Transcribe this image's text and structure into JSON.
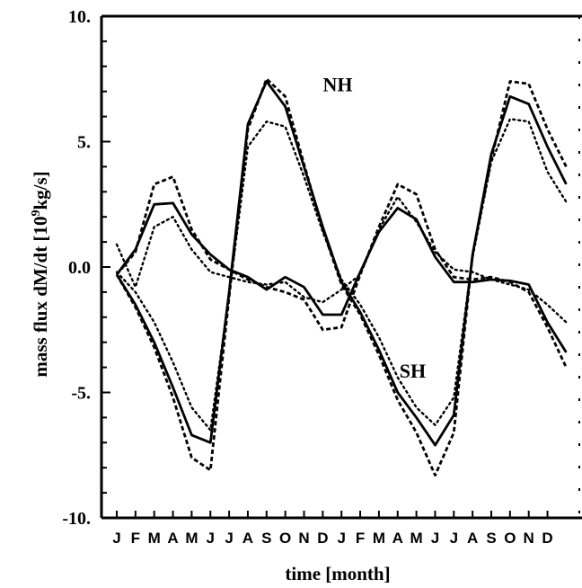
{
  "chart_data": {
    "type": "line",
    "title": "",
    "xlabel": "time [month]",
    "ylabel_parts": {
      "before": "mass flux dM/dt [10",
      "sup": "9",
      "after": "kg/s]"
    },
    "ylim": [
      -10,
      10
    ],
    "y_ticks": [
      10,
      5,
      0,
      -5,
      -10
    ],
    "y_tick_labels": [
      "10.",
      "5.",
      "0.0",
      "-5.",
      "-10."
    ],
    "x_ticks": [
      "J",
      "F",
      "M",
      "A",
      "M",
      "J",
      "J",
      "A",
      "S",
      "O",
      "N",
      "D",
      "J",
      "F",
      "M",
      "A",
      "M",
      "J",
      "J",
      "A",
      "S",
      "O",
      "N",
      "D"
    ],
    "annotations": [
      {
        "text": "NH",
        "x": 11.8,
        "y": 7.0
      },
      {
        "text": "SH",
        "x": 15.8,
        "y": -4.4
      }
    ],
    "series": [
      {
        "style": "solid",
        "values": [
          -0.3,
          0.7,
          2.5,
          2.55,
          1.3,
          0.5,
          -0.1,
          -0.4,
          -0.9,
          -0.4,
          -0.8,
          -1.9,
          -1.9,
          -0.2,
          1.4,
          2.35,
          1.9,
          0.4,
          -0.6,
          -0.6,
          -0.5,
          -0.55,
          -0.7,
          -2.2,
          -3.4
        ]
      },
      {
        "style": "dashed",
        "values": [
          -0.3,
          0.6,
          3.3,
          3.6,
          1.5,
          0.3,
          -0.1,
          -0.5,
          -0.8,
          -1.0,
          -1.3,
          -2.5,
          -2.4,
          -0.3,
          1.6,
          3.3,
          2.9,
          0.7,
          -0.4,
          -0.5,
          -0.4,
          -0.6,
          -1.0,
          -2.4,
          -4.0
        ]
      },
      {
        "style": "dotted",
        "values": [
          0.9,
          -0.8,
          1.6,
          2.0,
          0.7,
          -0.2,
          -0.4,
          -0.6,
          -0.7,
          -0.6,
          -1.2,
          -1.4,
          -0.9,
          -0.3,
          1.5,
          2.8,
          1.8,
          0.6,
          -0.1,
          -0.2,
          -0.5,
          -0.7,
          -0.9,
          -1.5,
          -2.2
        ]
      },
      {
        "style": "solid",
        "values": [
          -0.3,
          -1.5,
          -3.0,
          -4.8,
          -6.7,
          -7.0,
          -1.0,
          5.7,
          7.4,
          6.4,
          4.0,
          1.6,
          -0.6,
          -1.8,
          -3.3,
          -5.0,
          -6.0,
          -7.1,
          -5.9,
          0.5,
          4.5,
          6.8,
          6.5,
          4.8,
          3.3
        ]
      },
      {
        "style": "dashed",
        "values": [
          -0.3,
          -1.6,
          -3.2,
          -5.2,
          -7.6,
          -8.1,
          -1.2,
          5.5,
          7.5,
          6.8,
          4.1,
          1.5,
          -0.7,
          -1.9,
          -3.5,
          -5.3,
          -6.6,
          -8.3,
          -6.6,
          0.5,
          4.3,
          7.4,
          7.3,
          5.5,
          4.0
        ]
      },
      {
        "style": "dotted",
        "values": [
          -0.2,
          -1.0,
          -2.2,
          -3.8,
          -5.6,
          -6.5,
          -1.1,
          4.8,
          5.8,
          5.6,
          3.6,
          1.4,
          -0.5,
          -1.5,
          -2.8,
          -4.4,
          -5.6,
          -6.3,
          -5.2,
          0.4,
          4.2,
          5.9,
          5.8,
          3.8,
          2.6
        ]
      }
    ]
  }
}
